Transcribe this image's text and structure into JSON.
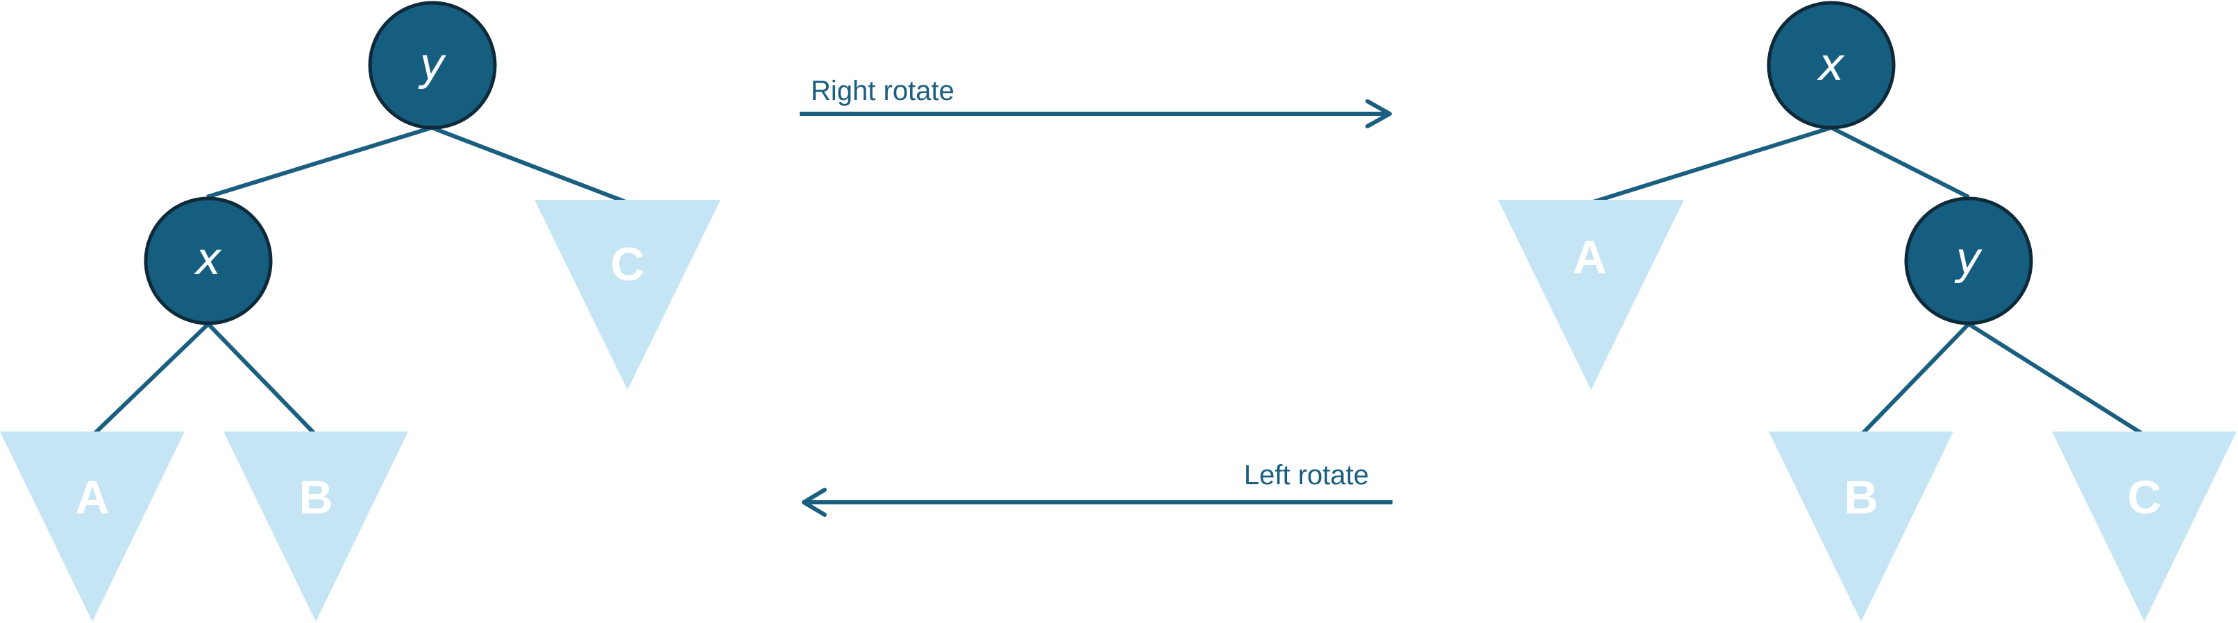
{
  "colors": {
    "node_fill": "#155e80",
    "node_stroke": "#0e2a38",
    "node_text": "#ffffff",
    "edge": "#1a5f80",
    "subtree_fill": "#c5e5f4",
    "subtree_text": "#ffffff",
    "arrow": "#1a5f80",
    "arrow_text": "#1a5f80"
  },
  "left_tree": {
    "root_label": "y",
    "child_label": "x",
    "subtrees": [
      "A",
      "B",
      "C"
    ]
  },
  "right_tree": {
    "root_label": "x",
    "child_label": "y",
    "subtrees": [
      "A",
      "B",
      "C"
    ]
  },
  "arrows": {
    "right_rotate": "Right rotate",
    "left_rotate": "Left rotate"
  }
}
